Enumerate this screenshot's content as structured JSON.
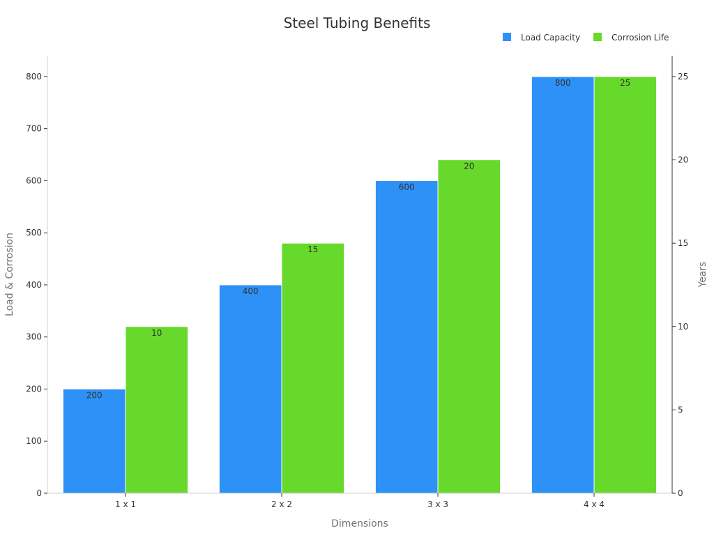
{
  "chart_data": {
    "type": "bar",
    "title": "Steel Tubing Benefits",
    "xlabel": "Dimensions",
    "ylabel": "Load & Corrosion",
    "y2label": "Years",
    "categories": [
      "1 x 1",
      "2 x 2",
      "3 x 3",
      "4 x 4"
    ],
    "series": [
      {
        "name": "Load Capacity",
        "values": [
          200,
          400,
          600,
          800
        ],
        "axis": "left",
        "color": "#2e91f7"
      },
      {
        "name": "Corrosion Life",
        "values": [
          10,
          15,
          20,
          25
        ],
        "axis": "right",
        "color": "#66d92b"
      }
    ],
    "ylim": [
      0,
      840
    ],
    "y2lim": [
      0,
      26.25
    ],
    "yticks": [
      0,
      100,
      200,
      300,
      400,
      500,
      600,
      700,
      800
    ],
    "y2ticks": [
      0,
      5,
      10,
      15,
      20,
      25
    ],
    "legend_position": "top-right",
    "grid": false
  }
}
